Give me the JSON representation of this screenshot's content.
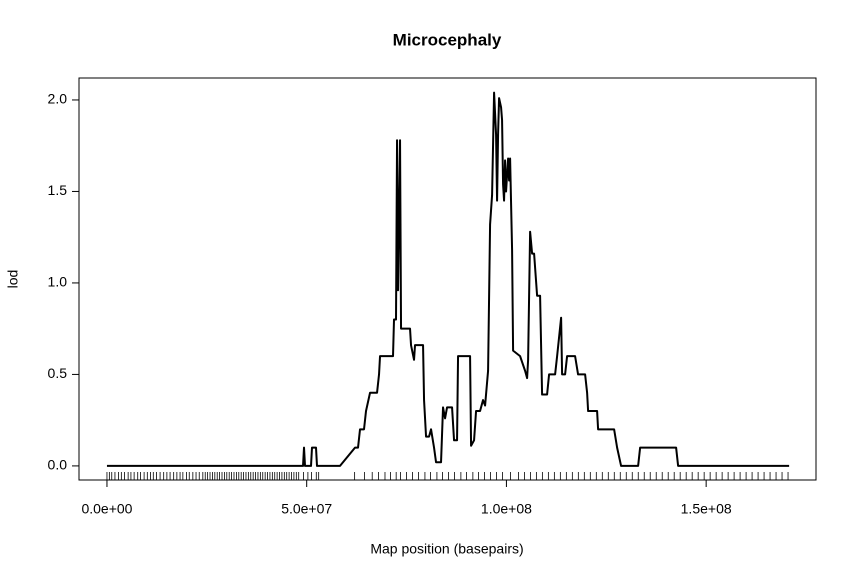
{
  "chart_data": {
    "type": "line",
    "title": "Microcephaly",
    "xlabel": "Map position (basepairs)",
    "ylabel": "lod",
    "xlim": [
      -7000000.0,
      177500000.0
    ],
    "ylim": [
      -0.077,
      2.12
    ],
    "xticks": [
      {
        "value": 0,
        "label": "0.0e+00"
      },
      {
        "value": 50000000.0,
        "label": "5.0e+07"
      },
      {
        "value": 100000000.0,
        "label": "1.0e+08"
      },
      {
        "value": 150000000.0,
        "label": "1.5e+08"
      }
    ],
    "yticks": [
      {
        "value": 0,
        "label": "0.0"
      },
      0.5,
      {
        "value": 1,
        "label": "1.0"
      },
      1.5,
      {
        "value": 2,
        "label": "2.0"
      }
    ],
    "color": "#000000",
    "x": [
      0,
      49080000.0,
      49330000.0,
      49580000.0,
      51080000.0,
      51330000.0,
      52330000.0,
      52580000.0,
      58340000.0,
      62100000.0,
      62850000.0,
      63350000.0,
      64350000.0,
      64850000.0,
      65860000.0,
      67610000.0,
      68110000.0,
      68360000.0,
      71610000.0,
      71860000.0,
      72360000.0,
      72620000.0,
      72870000.0,
      73370000.0,
      73620000.0,
      75870000.0,
      76120000.0,
      76870000.0,
      77120000.0,
      79130000.0,
      79380000.0,
      79880000.0,
      80630000.0,
      81130000.0,
      81880000.0,
      82380000.0,
      83630000.0,
      84130000.0,
      84640000.0,
      85140000.0,
      86390000.0,
      86890000.0,
      87640000.0,
      87890000.0,
      90900000.0,
      91150000.0,
      91900000.0,
      92400000.0,
      93400000.0,
      94150000.0,
      94660000.0,
      95410000.0,
      95910000.0,
      96410000.0,
      96910000.0,
      97410000.0,
      97660000.0,
      97910000.0,
      98160000.0,
      98660000.0,
      98910000.0,
      99160000.0,
      99410000.0,
      99660000.0,
      99910000.0,
      100420000.0,
      100670000.0,
      100920000.0,
      101420000.0,
      101670000.0,
      103420000.0,
      104670000.0,
      105180000.0,
      105430000.0,
      105930000.0,
      106430000.0,
      106930000.0,
      107680000.0,
      108430000.0,
      108930000.0,
      110180000.0,
      110680000.0,
      112190000.0,
      112690000.0,
      113690000.0,
      113940000.0,
      114690000.0,
      115190000.0,
      117190000.0,
      117940000.0,
      119700000.0,
      120200000.0,
      120450000.0,
      122700000.0,
      122950000.0,
      126960000.0,
      127710000.0,
      128710000.0,
      132970000.0,
      133470000.0,
      142480000.0,
      142980000.0,
      170770000.0
    ],
    "values": [
      0,
      0,
      0.1,
      0,
      0,
      0.1,
      0.1,
      0,
      0,
      0.1,
      0.1,
      0.2,
      0.2,
      0.3,
      0.4,
      0.4,
      0.5,
      0.6,
      0.6,
      0.8,
      0.8,
      1.78,
      0.96,
      1.78,
      0.75,
      0.75,
      0.66,
      0.58,
      0.66,
      0.66,
      0.36,
      0.16,
      0.16,
      0.2,
      0.1,
      0.02,
      0.02,
      0.32,
      0.26,
      0.32,
      0.32,
      0.14,
      0.14,
      0.6,
      0.6,
      0.11,
      0.14,
      0.3,
      0.3,
      0.36,
      0.33,
      0.52,
      1.32,
      1.48,
      2.04,
      1.81,
      1.45,
      1.81,
      2.01,
      1.96,
      1.89,
      1.54,
      1.45,
      1.67,
      1.5,
      1.68,
      1.56,
      1.68,
      1.18,
      0.63,
      0.6,
      0.52,
      0.48,
      0.58,
      1.28,
      1.16,
      1.16,
      0.93,
      0.93,
      0.39,
      0.39,
      0.5,
      0.5,
      0.6,
      0.81,
      0.5,
      0.5,
      0.6,
      0.6,
      0.5,
      0.5,
      0.4,
      0.3,
      0.3,
      0.2,
      0.2,
      0.1,
      0,
      0,
      0.1,
      0.1,
      0,
      0
    ],
    "rug": [
      0,
      600000.0,
      1200000.0,
      2000000.0,
      2900000.0,
      3600000.0,
      4400000.0,
      5300000.0,
      6000000.0,
      6800000.0,
      7700000.0,
      8400000.0,
      9300000.0,
      10100000.0,
      10900000.0,
      11600000.0,
      12400000.0,
      13300000.0,
      14200000.0,
      15000000.0,
      15800000.0,
      16700000.0,
      17500000.0,
      18300000.0,
      19000000.0,
      19900000.0,
      20600000.0,
      21500000.0,
      22300000.0,
      23100000.0,
      24000000.0,
      24600000.0,
      25200000.0,
      25800000.0,
      26400000.0,
      27000000.0,
      27600000.0,
      28200000.0,
      28800000.0,
      29400000.0,
      30000000.0,
      30600000.0,
      31200000.0,
      31800000.0,
      32400000.0,
      33000000.0,
      33600000.0,
      34200000.0,
      34800000.0,
      35400000.0,
      36000000.0,
      36600000.0,
      37200000.0,
      37800000.0,
      38400000.0,
      39000000.0,
      39600000.0,
      40200000.0,
      40800000.0,
      41400000.0,
      42000000.0,
      42600000.0,
      43200000.0,
      43800000.0,
      44400000.0,
      45000000.0,
      45600000.0,
      46200000.0,
      46800000.0,
      47400000.0,
      48000000.0,
      49200000.0,
      50300000.0,
      51200000.0,
      52400000.0,
      53000000.0,
      62000000.0,
      64500000.0,
      66400000.0,
      68000000.0,
      69600000.0,
      71000000.0,
      72400000.0,
      73500000.0,
      75000000.0,
      76500000.0,
      78000000.0,
      79600000.0,
      81000000.0,
      82600000.0,
      84000000.0,
      85500000.0,
      87000000.0,
      88600000.0,
      90000000.0,
      91600000.0,
      93000000.0,
      94500000.0,
      96000000.0,
      97500000.0,
      99000000.0,
      101000000.0,
      103000000.0,
      104500000.0,
      106000000.0,
      107500000.0,
      109000000.0,
      110500000.0,
      112000000.0,
      113500000.0,
      115000000.0,
      116500000.0,
      118000000.0,
      119500000.0,
      121000000.0,
      122500000.0,
      124000000.0,
      125500000.0,
      127000000.0,
      128500000.0,
      130000000.0,
      131500000.0,
      133000000.0,
      134500000.0,
      136000000.0,
      137500000.0,
      139000000.0,
      140500000.0,
      142000000.0,
      143500000.0,
      145000000.0,
      146500000.0,
      148000000.0,
      149500000.0,
      151000000.0,
      152500000.0,
      154000000.0,
      155500000.0,
      157000000.0,
      158500000.0,
      160000000.0,
      161500000.0,
      163000000.0,
      164500000.0,
      166000000.0,
      167500000.0,
      169000000.0,
      170500000.0
    ]
  }
}
